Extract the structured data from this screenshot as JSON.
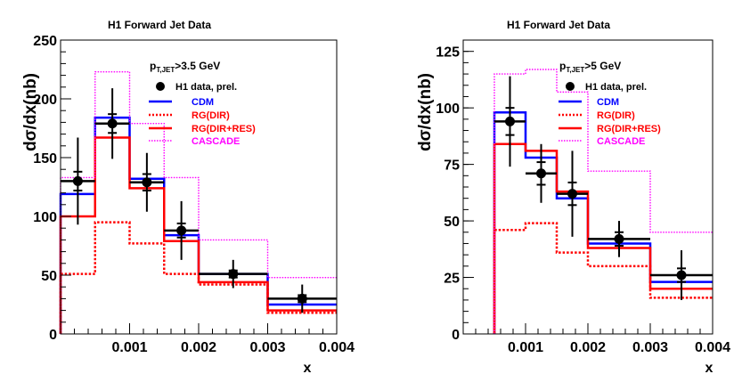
{
  "chart_data": [
    {
      "type": "step",
      "title": "H1 Forward Jet Data",
      "xlabel": "x",
      "ylabel": "dσ/dx(nb)",
      "annotation_main": "p",
      "annotation_sub": "T,JET",
      "annotation_rest": ">3.5 GeV",
      "xlim": [
        0,
        0.004
      ],
      "ylim": [
        0,
        250
      ],
      "xticks": [
        0.001,
        0.002,
        0.003,
        0.004
      ],
      "xtick_labels": [
        "0.001",
        "0.002",
        "0.003",
        "0.004"
      ],
      "yticks": [
        0,
        50,
        100,
        150,
        200,
        250
      ],
      "ytick_labels": [
        "0",
        "50",
        "100",
        "150",
        "200",
        "250"
      ],
      "bin_edges": [
        0,
        0.0005,
        0.001,
        0.0015,
        0.002,
        0.003,
        0.004
      ],
      "series": [
        {
          "name": "CDM",
          "color": "#0000ff",
          "style": "solid",
          "values": [
            119,
            184,
            132,
            84,
            51,
            25
          ]
        },
        {
          "name": "RG(DIR)",
          "color": "#ff0000",
          "style": "dotted",
          "values": [
            51,
            95,
            77,
            51,
            42,
            18
          ]
        },
        {
          "name": "RG(DIR+RES)",
          "color": "#ff0000",
          "style": "solid",
          "values": [
            100,
            167,
            124,
            79,
            44,
            20
          ]
        },
        {
          "name": "CASCADE",
          "color": "#ff00ff",
          "style": "dotted",
          "values": [
            133,
            223,
            179,
            133,
            80,
            48
          ]
        }
      ],
      "data_series": {
        "name": "H1 data, prel.",
        "x": [
          0.00025,
          0.00075,
          0.00125,
          0.00175,
          0.0025,
          0.0035
        ],
        "y": [
          130,
          179,
          129,
          88,
          51,
          30
        ],
        "xerr": [
          0.00025,
          0.00025,
          0.00025,
          0.00025,
          0.0005,
          0.0005
        ],
        "yerr_stat": [
          8,
          8,
          7,
          6,
          3,
          3
        ],
        "yerr_tot": [
          37,
          30,
          25,
          25,
          12,
          12
        ]
      }
    },
    {
      "type": "step",
      "title": "H1 Forward Jet Data",
      "xlabel": "x",
      "ylabel": "dσ/dx(nb)",
      "annotation_main": "p",
      "annotation_sub": "T,JET",
      "annotation_rest": ">5 GeV",
      "xlim": [
        0,
        0.004
      ],
      "ylim": [
        0,
        130
      ],
      "xticks": [
        0.001,
        0.002,
        0.003,
        0.004
      ],
      "xtick_labels": [
        "0.001",
        "0.002",
        "0.003",
        "0.004"
      ],
      "yticks": [
        0,
        25,
        50,
        75,
        100,
        125
      ],
      "ytick_labels": [
        "0",
        "25",
        "50",
        "75",
        "100",
        "125"
      ],
      "bin_edges": [
        0.0005,
        0.001,
        0.0015,
        0.002,
        0.003,
        0.004
      ],
      "series": [
        {
          "name": "CDM",
          "color": "#0000ff",
          "style": "solid",
          "values": [
            98,
            78,
            60,
            40,
            23
          ]
        },
        {
          "name": "RG(DIR)",
          "color": "#ff0000",
          "style": "dotted",
          "values": [
            46,
            49,
            36,
            30,
            16
          ]
        },
        {
          "name": "RG(DIR+RES)",
          "color": "#ff0000",
          "style": "solid",
          "values": [
            84,
            81,
            63,
            38,
            20
          ]
        },
        {
          "name": "CASCADE",
          "color": "#ff00ff",
          "style": "dotted",
          "values": [
            115,
            117,
            107,
            72,
            45
          ]
        }
      ],
      "data_series": {
        "name": "H1 data, prel.",
        "x": [
          0.00075,
          0.00125,
          0.00175,
          0.0025,
          0.0035
        ],
        "y": [
          94,
          71,
          62,
          42,
          26
        ],
        "xerr": [
          0.00025,
          0.00025,
          0.00025,
          0.0005,
          0.0005
        ],
        "yerr_stat": [
          6,
          5,
          5,
          3,
          3
        ],
        "yerr_tot": [
          20,
          13,
          19,
          8,
          11
        ]
      }
    }
  ]
}
